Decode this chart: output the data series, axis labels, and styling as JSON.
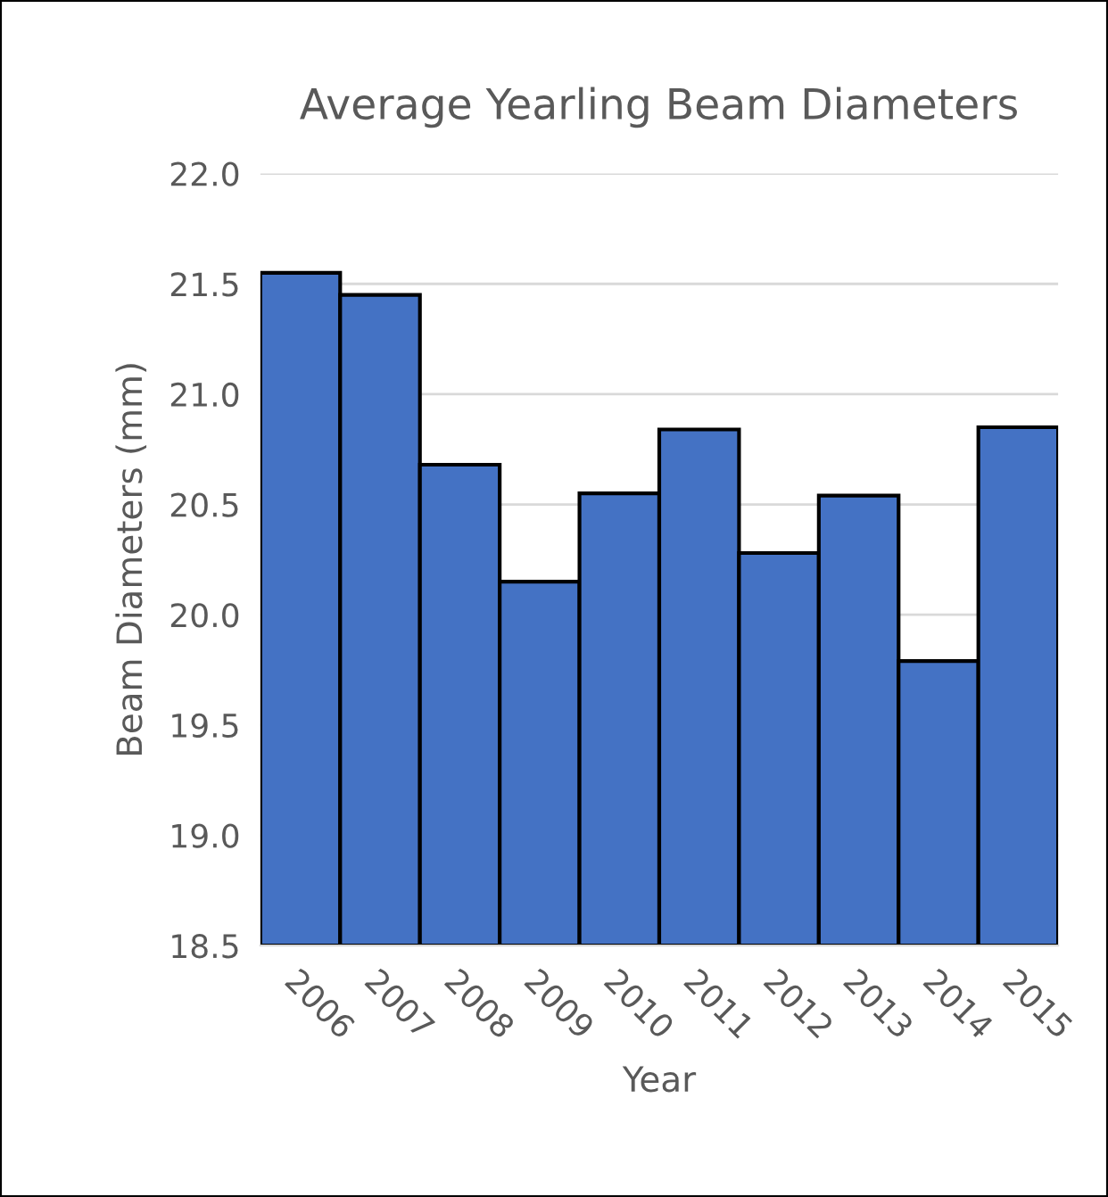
{
  "chart_data": {
    "type": "bar",
    "title": "Average Yearling Beam Diameters",
    "xlabel": "Year",
    "ylabel": "Beam Diameters (mm)",
    "categories": [
      "2006",
      "2007",
      "2008",
      "2009",
      "2010",
      "2011",
      "2012",
      "2013",
      "2014",
      "2015"
    ],
    "values": [
      21.55,
      21.45,
      20.68,
      20.15,
      20.55,
      20.84,
      20.28,
      20.54,
      19.79,
      20.85
    ],
    "color": "#4472c4",
    "ylim": [
      18.5,
      22.0
    ],
    "yticks": [
      {
        "value": 18.5,
        "label": "18.5"
      },
      {
        "value": 19.0,
        "label": "19.0"
      },
      {
        "value": 19.5,
        "label": "19.5"
      },
      {
        "value": 20.0,
        "label": "20.0"
      },
      {
        "value": 20.5,
        "label": "20.5"
      },
      {
        "value": 21.0,
        "label": "21.0"
      },
      {
        "value": 21.5,
        "label": "21.5"
      },
      {
        "value": 22.0,
        "label": "22.0"
      }
    ],
    "grid": "y"
  }
}
